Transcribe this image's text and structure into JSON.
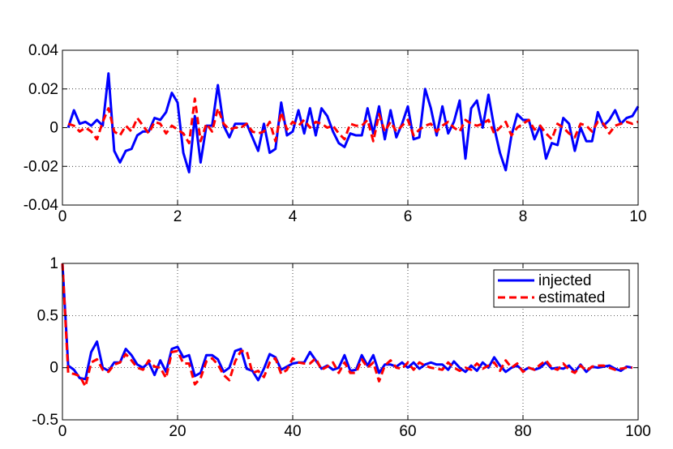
{
  "chart_data": [
    {
      "type": "line",
      "xlim": [
        0,
        10
      ],
      "ylim": [
        -0.04,
        0.04
      ],
      "xticks": [
        "0",
        "2",
        "4",
        "6",
        "8",
        "10"
      ],
      "xtick_values": [
        0,
        2,
        4,
        6,
        8,
        10
      ],
      "yticks": [
        "-0.04",
        "-0.02",
        "0",
        "0.02",
        "0.04"
      ],
      "ytick_values": [
        -0.04,
        -0.02,
        0,
        0.02,
        0.04
      ],
      "grid": true,
      "series": [
        {
          "color": "#0000ff",
          "style": "solid",
          "x": [
            0.1,
            0.2,
            0.3,
            0.4,
            0.5,
            0.6,
            0.7,
            0.8,
            0.9,
            1.0,
            1.1,
            1.2,
            1.3,
            1.4,
            1.5,
            1.6,
            1.7,
            1.8,
            1.9,
            2.0,
            2.1,
            2.2,
            2.3,
            2.4,
            2.5,
            2.6,
            2.7,
            2.8,
            2.9,
            3.0,
            3.1,
            3.2,
            3.3,
            3.4,
            3.5,
            3.6,
            3.7,
            3.8,
            3.9,
            4.0,
            4.1,
            4.2,
            4.3,
            4.4,
            4.5,
            4.6,
            4.7,
            4.8,
            4.9,
            5.0,
            5.1,
            5.2,
            5.3,
            5.4,
            5.5,
            5.6,
            5.7,
            5.8,
            5.9,
            6.0,
            6.1,
            6.2,
            6.3,
            6.4,
            6.5,
            6.6,
            6.7,
            6.8,
            6.9,
            7.0,
            7.1,
            7.2,
            7.3,
            7.4,
            7.5,
            7.6,
            7.7,
            7.8,
            7.9,
            8.0,
            8.1,
            8.2,
            8.3,
            8.4,
            8.5,
            8.6,
            8.7,
            8.8,
            8.9,
            9.0,
            9.1,
            9.2,
            9.3,
            9.4,
            9.5,
            9.6,
            9.7,
            9.8,
            9.9,
            10.0
          ],
          "values": [
            0.0,
            0.009,
            0.002,
            0.003,
            0.001,
            0.004,
            0.001,
            0.028,
            -0.012,
            -0.018,
            -0.012,
            -0.011,
            -0.004,
            -0.002,
            -0.002,
            0.005,
            0.004,
            0.008,
            0.018,
            0.013,
            -0.013,
            -0.023,
            0.006,
            -0.018,
            0.001,
            0.001,
            0.022,
            0.001,
            -0.005,
            0.002,
            0.002,
            0.002,
            -0.005,
            -0.012,
            0.002,
            -0.013,
            -0.011,
            0.013,
            -0.004,
            -0.002,
            0.009,
            -0.003,
            0.01,
            -0.004,
            0.01,
            0.006,
            -0.002,
            -0.008,
            -0.01,
            -0.003,
            -0.004,
            -0.004,
            0.01,
            -0.003,
            0.011,
            -0.006,
            0.009,
            -0.005,
            0.002,
            0.011,
            -0.006,
            -0.005,
            0.02,
            0.01,
            -0.004,
            0.011,
            -0.003,
            0.003,
            0.014,
            -0.016,
            0.01,
            0.014,
            0.0,
            0.017,
            0.0,
            -0.013,
            -0.022,
            -0.004,
            0.007,
            0.004,
            0.004,
            -0.006,
            0.001,
            -0.016,
            -0.008,
            -0.009,
            0.005,
            0.002,
            -0.012,
            0.0,
            -0.007,
            -0.007,
            0.008,
            0.001,
            0.004,
            0.009,
            0.002,
            0.005,
            0.006,
            0.011
          ]
        },
        {
          "color": "#ff0000",
          "style": "dashed",
          "x": [
            0.1,
            0.2,
            0.3,
            0.4,
            0.5,
            0.6,
            0.7,
            0.8,
            0.9,
            1.0,
            1.1,
            1.2,
            1.3,
            1.4,
            1.5,
            1.6,
            1.7,
            1.8,
            1.9,
            2.0,
            2.1,
            2.2,
            2.3,
            2.4,
            2.5,
            2.6,
            2.7,
            2.8,
            2.9,
            3.0,
            3.1,
            3.2,
            3.3,
            3.4,
            3.5,
            3.6,
            3.7,
            3.8,
            3.9,
            4.0,
            4.1,
            4.2,
            4.3,
            4.4,
            4.5,
            4.6,
            4.7,
            4.8,
            4.9,
            5.0,
            5.1,
            5.2,
            5.3,
            5.4,
            5.5,
            5.6,
            5.7,
            5.8,
            5.9,
            6.0,
            6.1,
            6.2,
            6.3,
            6.4,
            6.5,
            6.6,
            6.7,
            6.8,
            6.9,
            7.0,
            7.1,
            7.2,
            7.3,
            7.4,
            7.5,
            7.6,
            7.7,
            7.8,
            7.9,
            8.0,
            8.1,
            8.2,
            8.3,
            8.4,
            8.5,
            8.6,
            8.7,
            8.8,
            8.9,
            9.0,
            9.1,
            9.2,
            9.3,
            9.4,
            9.5,
            9.6,
            9.7,
            9.8,
            9.9,
            10.0
          ],
          "values": [
            0.002,
            0.001,
            -0.002,
            0.0,
            -0.002,
            -0.006,
            0.003,
            0.01,
            -0.002,
            -0.004,
            0.001,
            -0.002,
            0.005,
            0.001,
            -0.003,
            0.003,
            0.002,
            -0.003,
            0.001,
            -0.001,
            -0.003,
            -0.008,
            0.015,
            -0.007,
            0.002,
            -0.002,
            0.01,
            0.002,
            -0.001,
            0.0,
            0.0,
            0.002,
            -0.002,
            -0.003,
            -0.002,
            0.003,
            -0.007,
            0.008,
            -0.001,
            0.003,
            0.001,
            0.004,
            0.0,
            0.003,
            0.002,
            0.0,
            0.001,
            -0.003,
            -0.006,
            0.002,
            0.001,
            0.001,
            0.004,
            -0.007,
            0.007,
            -0.002,
            0.003,
            -0.002,
            0.001,
            0.004,
            -0.004,
            -0.001,
            0.001,
            0.002,
            -0.002,
            0.001,
            0.003,
            0.0,
            -0.002,
            0.004,
            0.002,
            0.001,
            0.002,
            0.004,
            -0.003,
            0.0,
            0.003,
            -0.004,
            0.0,
            0.002,
            0.004,
            -0.001,
            0.001,
            -0.003,
            -0.006,
            0.002,
            0.0,
            -0.003,
            -0.005,
            0.002,
            0.001,
            -0.002,
            0.003,
            0.002,
            -0.003,
            0.001,
            0.002,
            0.003,
            0.002,
            0.003
          ]
        }
      ]
    },
    {
      "type": "line",
      "xlim": [
        0,
        100
      ],
      "ylim": [
        -0.5,
        1
      ],
      "xticks": [
        "0",
        "20",
        "40",
        "60",
        "80",
        "100"
      ],
      "xtick_values": [
        0,
        20,
        40,
        60,
        80,
        100
      ],
      "yticks": [
        "-0.5",
        "0",
        "0.5",
        "1"
      ],
      "ytick_values": [
        -0.5,
        0,
        0.5,
        1
      ],
      "grid": true,
      "legend_position": "top-right",
      "series": [
        {
          "name": "injected",
          "color": "#0000ff",
          "style": "solid",
          "x": [
            0,
            1,
            2,
            3,
            4,
            5,
            6,
            7,
            8,
            9,
            10,
            11,
            12,
            13,
            14,
            15,
            16,
            17,
            18,
            19,
            20,
            21,
            22,
            23,
            24,
            25,
            26,
            27,
            28,
            29,
            30,
            31,
            32,
            33,
            34,
            35,
            36,
            37,
            38,
            39,
            40,
            41,
            42,
            43,
            44,
            45,
            46,
            47,
            48,
            49,
            50,
            51,
            52,
            53,
            54,
            55,
            56,
            57,
            58,
            59,
            60,
            61,
            62,
            63,
            64,
            65,
            66,
            67,
            68,
            69,
            70,
            71,
            72,
            73,
            74,
            75,
            76,
            77,
            78,
            79,
            80,
            81,
            82,
            83,
            84,
            85,
            86,
            87,
            88,
            89,
            90,
            91,
            92,
            93,
            94,
            95,
            96,
            97,
            98,
            99
          ],
          "values": [
            1.0,
            0.02,
            -0.02,
            -0.1,
            -0.11,
            0.15,
            0.25,
            0.0,
            -0.03,
            0.05,
            0.05,
            0.18,
            0.12,
            0.03,
            0.0,
            0.05,
            -0.07,
            0.07,
            -0.04,
            0.18,
            0.2,
            0.1,
            0.12,
            -0.08,
            -0.05,
            0.12,
            0.12,
            0.08,
            -0.04,
            0.0,
            0.16,
            0.18,
            -0.01,
            -0.03,
            -0.12,
            -0.01,
            0.13,
            0.1,
            -0.02,
            0.01,
            0.04,
            0.05,
            0.05,
            0.15,
            0.07,
            -0.01,
            0.02,
            -0.02,
            0.0,
            0.12,
            -0.03,
            -0.02,
            0.12,
            0.02,
            0.12,
            -0.05,
            0.03,
            0.03,
            0.01,
            0.05,
            0.0,
            0.05,
            -0.01,
            0.03,
            0.05,
            0.03,
            0.03,
            -0.02,
            0.06,
            0.0,
            -0.04,
            0.02,
            -0.03,
            0.05,
            0.0,
            0.1,
            0.02,
            -0.04,
            0.0,
            0.02,
            -0.03,
            0.0,
            -0.02,
            0.0,
            0.05,
            -0.01,
            0.0,
            -0.01,
            0.02,
            -0.04,
            0.03,
            -0.04,
            0.01,
            0.0,
            0.01,
            0.02,
            -0.01,
            -0.03,
            0.01,
            0.0
          ]
        },
        {
          "name": "estimated",
          "color": "#ff0000",
          "style": "dashed",
          "x": [
            0,
            1,
            2,
            3,
            4,
            5,
            6,
            7,
            8,
            9,
            10,
            11,
            12,
            13,
            14,
            15,
            16,
            17,
            18,
            19,
            20,
            21,
            22,
            23,
            24,
            25,
            26,
            27,
            28,
            29,
            30,
            31,
            32,
            33,
            34,
            35,
            36,
            37,
            38,
            39,
            40,
            41,
            42,
            43,
            44,
            45,
            46,
            47,
            48,
            49,
            50,
            51,
            52,
            53,
            54,
            55,
            56,
            57,
            58,
            59,
            60,
            61,
            62,
            63,
            64,
            65,
            66,
            67,
            68,
            69,
            70,
            71,
            72,
            73,
            74,
            75,
            76,
            77,
            78,
            79,
            80,
            81,
            82,
            83,
            84,
            85,
            86,
            87,
            88,
            89,
            90,
            91,
            92,
            93,
            94,
            95,
            96,
            97,
            98,
            99
          ],
          "values": [
            1.0,
            -0.05,
            -0.06,
            -0.08,
            -0.18,
            0.05,
            0.08,
            -0.02,
            -0.04,
            0.03,
            0.05,
            0.13,
            0.07,
            0.0,
            -0.02,
            0.07,
            0.01,
            0.0,
            -0.1,
            0.15,
            0.16,
            0.04,
            0.04,
            -0.16,
            -0.1,
            0.06,
            0.09,
            0.03,
            -0.07,
            -0.12,
            0.06,
            0.16,
            0.16,
            -0.05,
            -0.03,
            -0.09,
            0.05,
            0.09,
            -0.06,
            -0.02,
            0.09,
            0.05,
            0.04,
            0.04,
            0.09,
            -0.02,
            0.01,
            0.05,
            -0.05,
            0.05,
            -0.05,
            -0.05,
            0.08,
            0.0,
            0.05,
            -0.13,
            0.02,
            0.07,
            0.0,
            -0.01,
            0.05,
            -0.02,
            0.05,
            0.02,
            0.0,
            -0.01,
            -0.02,
            0.05,
            0.0,
            -0.03,
            0.0,
            -0.02,
            0.04,
            -0.01,
            0.02,
            0.05,
            -0.03,
            0.07,
            0.0,
            0.04,
            -0.04,
            0.0,
            -0.02,
            0.03,
            0.07,
            0.0,
            -0.02,
            0.04,
            -0.02,
            -0.05,
            0.02,
            -0.03,
            0.01,
            0.02,
            0.02,
            0.0,
            -0.02,
            -0.01,
            0.0,
            0.0
          ]
        }
      ]
    }
  ]
}
